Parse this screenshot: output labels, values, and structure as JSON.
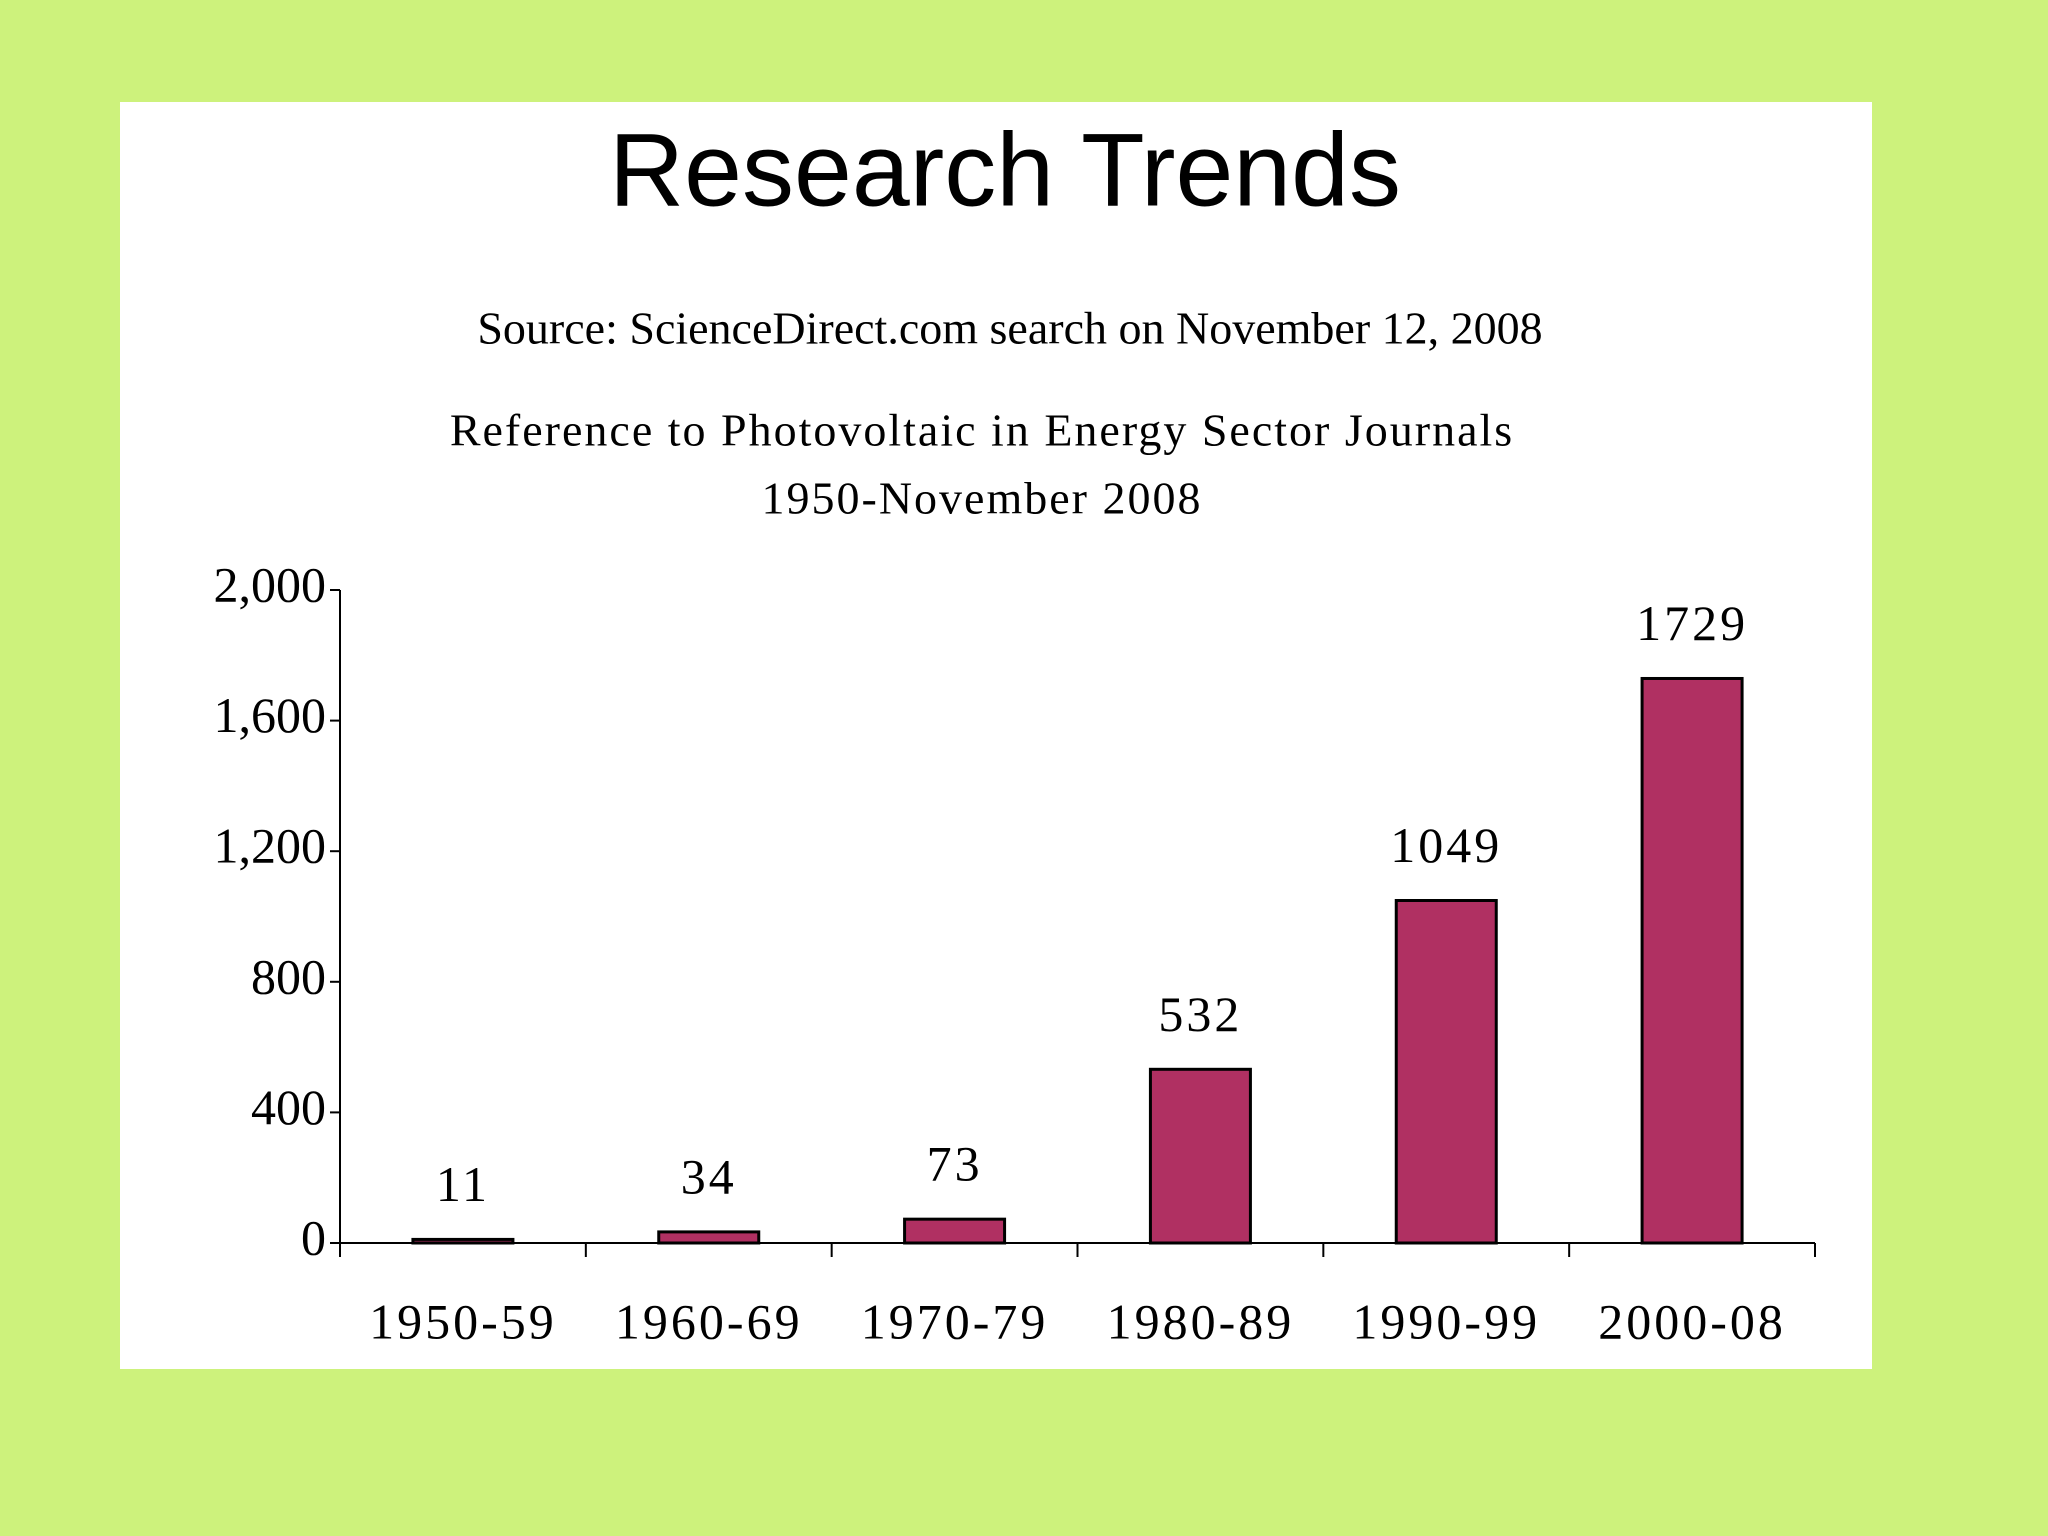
{
  "slide": {
    "title": "Research Trends",
    "source": "Source: ScienceDirect.com search on November 12, 2008"
  },
  "chart_data": {
    "type": "bar",
    "title": "Reference to Photovoltaic in Energy Sector Journals",
    "subtitle": "1950-November 2008",
    "categories": [
      "1950-59",
      "1960-69",
      "1970-79",
      "1980-89",
      "1990-99",
      "2000-08"
    ],
    "values": [
      11,
      34,
      73,
      532,
      1049,
      1729
    ],
    "color": "#b03062",
    "ylim": [
      0,
      2000
    ],
    "yticks": [
      0,
      400,
      800,
      {
        "value": 1200,
        "label": "1,200"
      },
      {
        "value": 1600,
        "label": "1,600"
      },
      {
        "value": 2000,
        "label": "2,000"
      }
    ],
    "grid": false
  }
}
